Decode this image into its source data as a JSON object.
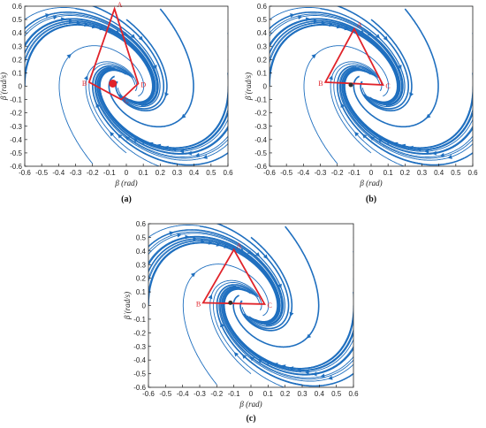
{
  "colors": {
    "stream": "#1f6fbf",
    "region": "#e0232a",
    "axis": "#222222"
  },
  "chart_data": [
    {
      "type": "streamplot",
      "caption": "(a)",
      "xlabel": "β (rad)",
      "ylabel": "β̇ (rad/s)",
      "xlim": [
        -0.6,
        0.6
      ],
      "ylim": [
        -0.6,
        0.6
      ],
      "x_ticks": [
        "-0.6",
        "-0.5",
        "-0.4",
        "-0.3",
        "-0.2",
        "-0.1",
        "0",
        "0.1",
        "0.2",
        "0.3",
        "0.4",
        "0.5",
        "0.6"
      ],
      "y_ticks": [
        "0.6",
        "0.5",
        "0.4",
        "0.3",
        "0.2",
        "0.1",
        "0",
        "-0.1",
        "-0.2",
        "-0.3",
        "-0.4",
        "-0.5",
        "-0.6"
      ],
      "region": {
        "vertices": [
          {
            "label": "A",
            "x": -0.07,
            "y": 0.58
          },
          {
            "label": "B",
            "x": -0.22,
            "y": 0.03
          },
          {
            "label": "C",
            "x": -0.03,
            "y": -0.1
          },
          {
            "label": "D",
            "x": 0.07,
            "y": 0.02
          }
        ]
      },
      "equilibrium": {
        "x": -0.08,
        "y": 0.02,
        "size": "large"
      }
    },
    {
      "type": "streamplot",
      "caption": "(b)",
      "xlabel": "β (rad)",
      "ylabel": "β̇ (rad/s)",
      "xlim": [
        -0.6,
        0.6
      ],
      "ylim": [
        -0.6,
        0.6
      ],
      "x_ticks": [
        "-0.6",
        "-0.5",
        "-0.4",
        "-0.3",
        "-0.2",
        "-0.1",
        "0",
        "0.1",
        "0.2",
        "0.3",
        "0.4",
        "0.5",
        "0.6"
      ],
      "y_ticks": [
        "0.6",
        "0.5",
        "0.4",
        "0.3",
        "0.2",
        "0.1",
        "0",
        "-0.1",
        "-0.2",
        "-0.3",
        "-0.4",
        "-0.5",
        "-0.6"
      ],
      "region": {
        "vertices": [
          {
            "label": "A",
            "x": -0.1,
            "y": 0.43
          },
          {
            "label": "B",
            "x": -0.27,
            "y": 0.03
          },
          {
            "label": "C",
            "x": 0.07,
            "y": 0.01
          }
        ]
      },
      "equilibrium": {
        "x": -0.12,
        "y": 0.01,
        "size": "small"
      }
    },
    {
      "type": "streamplot",
      "caption": "(c)",
      "xlabel": "β (rad)",
      "ylabel": "β̇ (rad/s)",
      "xlim": [
        -0.6,
        0.6
      ],
      "ylim": [
        -0.6,
        0.6
      ],
      "x_ticks": [
        "-0.6",
        "-0.5",
        "-0.4",
        "-0.3",
        "-0.2",
        "-0.1",
        "0",
        "0.1",
        "0.2",
        "0.3",
        "0.4",
        "0.5",
        "0.6"
      ],
      "y_ticks": [
        "0.6",
        "0.5",
        "0.4",
        "0.3",
        "0.2",
        "0.1",
        "0",
        "-0.1",
        "-0.2",
        "-0.3",
        "-0.4",
        "-0.5",
        "-0.6"
      ],
      "region": {
        "vertices": [
          {
            "label": "A",
            "x": -0.1,
            "y": 0.41
          },
          {
            "label": "B",
            "x": -0.28,
            "y": 0.02
          },
          {
            "label": "C",
            "x": 0.08,
            "y": 0.01
          }
        ]
      },
      "equilibrium": {
        "x": -0.12,
        "y": 0.02,
        "size": "small"
      }
    }
  ]
}
